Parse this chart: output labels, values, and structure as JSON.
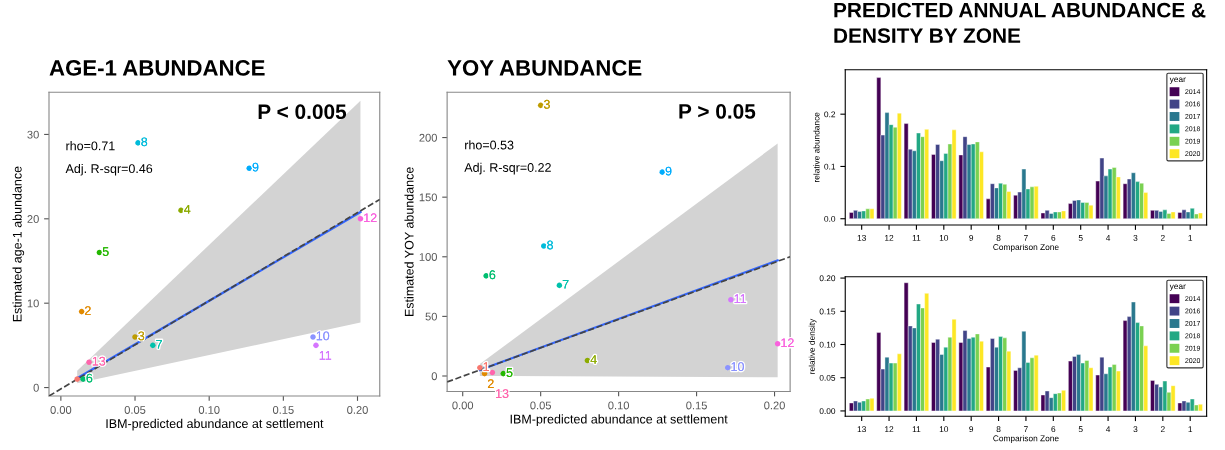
{
  "chart_data": [
    {
      "type": "scatter",
      "title": "AGE-1 ABUNDANCE",
      "xlabel": "IBM-predicted abundance at settlement",
      "ylabel": "Estimated age-1 abundance",
      "xlim": [
        -0.008,
        0.215
      ],
      "ylim": [
        -1,
        35
      ],
      "xticks": [
        {
          "value": 0,
          "label": "0.00"
        },
        {
          "value": 0.05,
          "label": "0.05"
        },
        {
          "value": 0.1,
          "label": "0.10"
        },
        {
          "value": 0.15,
          "label": "0.15"
        },
        {
          "value": 0.2,
          "label": "0.20"
        }
      ],
      "yticks": [
        0,
        10,
        20,
        30
      ],
      "grid": false,
      "x": [
        0.011,
        0.014,
        0.05,
        0.081,
        0.026,
        0.015,
        0.062,
        0.052,
        0.127,
        0.17,
        0.172,
        0.202,
        0.019
      ],
      "series": [
        {
          "type": "scatter",
          "marker": "circle",
          "colors": [
            "#f8766d",
            "#e18a00",
            "#be9c00",
            "#8cab00",
            "#24b700",
            "#00be70",
            "#00c1ab",
            "#00bbda",
            "#00acfc",
            "#8b93ff",
            "#d575fe",
            "#f962dd",
            "#ff65ac"
          ],
          "values": [
            1,
            9,
            6,
            21,
            16,
            1,
            5,
            29,
            26,
            6,
            5,
            20,
            3
          ]
        },
        {
          "type": "line",
          "x": [
            0.011,
            0.202
          ],
          "values": [
            1.1,
            20.8
          ],
          "lower": [
            0.5,
            7.7
          ],
          "upper": [
            2,
            34
          ],
          "color": "#3366ff"
        },
        {
          "type": "line",
          "x": [
            -0.008,
            0.215
          ],
          "values": [
            -1,
            22.3
          ],
          "color": "#444444",
          "line_style": "dashed"
        }
      ],
      "annotations": [
        "rho=0.71",
        "Adj. R-sqr=0.46",
        "P < 0.005",
        {
          "text": "2",
          "x": 0.014,
          "y": 9
        },
        {
          "text": "3",
          "x": 0.05,
          "y": 6
        },
        {
          "text": "4",
          "x": 0.081,
          "y": 21
        },
        {
          "text": "5",
          "x": 0.026,
          "y": 16
        },
        {
          "text": "6",
          "x": 0.015,
          "y": 1
        },
        {
          "text": "7",
          "x": 0.062,
          "y": 5
        },
        {
          "text": "8",
          "x": 0.052,
          "y": 29
        },
        {
          "text": "9",
          "x": 0.127,
          "y": 26
        },
        {
          "text": "10",
          "x": 0.17,
          "y": 6
        },
        {
          "text": "11",
          "x": 0.172,
          "y": 5
        },
        {
          "text": "12",
          "x": 0.202,
          "y": 20
        },
        {
          "text": "13",
          "x": 0.019,
          "y": 3
        }
      ]
    },
    {
      "type": "scatter",
      "title": "YOY ABUNDANCE",
      "xlabel": "IBM-predicted abundance at settlement",
      "ylabel": "Estimated YOY abundance",
      "xlim": [
        -0.01,
        0.21
      ],
      "ylim": [
        -13,
        238
      ],
      "xticks": [
        {
          "value": 0,
          "label": "0.00"
        },
        {
          "value": 0.05,
          "label": "0.05"
        },
        {
          "value": 0.1,
          "label": "0.10"
        },
        {
          "value": 0.15,
          "label": "0.15"
        },
        {
          "value": 0.2,
          "label": "0.20"
        }
      ],
      "yticks": [
        0,
        50,
        100,
        150,
        200
      ],
      "grid": false,
      "x": [
        0.011,
        0.014,
        0.05,
        0.08,
        0.026,
        0.015,
        0.062,
        0.052,
        0.128,
        0.17,
        0.172,
        0.202,
        0.019
      ],
      "series": [
        {
          "type": "scatter",
          "marker": "circle",
          "colors": [
            "#f8766d",
            "#e18a00",
            "#be9c00",
            "#8cab00",
            "#24b700",
            "#00be70",
            "#00c1ab",
            "#00bbda",
            "#00acfc",
            "#8b93ff",
            "#d575fe",
            "#f962dd",
            "#ff65ac"
          ],
          "values": [
            7,
            2,
            227,
            13,
            2,
            84,
            76,
            109,
            171,
            7,
            64,
            27,
            3
          ]
        },
        {
          "type": "line",
          "x": [
            0.011,
            0.202
          ],
          "values": [
            5,
            97
          ],
          "lower": [
            0,
            -1
          ],
          "upper": [
            10,
            195
          ],
          "color": "#3366ff"
        },
        {
          "type": "line",
          "x": [
            -0.01,
            0.21
          ],
          "values": [
            -5,
            100
          ],
          "color": "#444444",
          "line_style": "dashed"
        }
      ],
      "annotations": [
        "rho=0.53",
        "Adj. R-sqr=0.22",
        "P > 0.05",
        {
          "text": "1",
          "x": 0.011,
          "y": 7
        },
        {
          "text": "2",
          "x": 0.014,
          "y": 2
        },
        {
          "text": "3",
          "x": 0.05,
          "y": 227
        },
        {
          "text": "4",
          "x": 0.08,
          "y": 13
        },
        {
          "text": "5",
          "x": 0.026,
          "y": 2
        },
        {
          "text": "6",
          "x": 0.015,
          "y": 84
        },
        {
          "text": "7",
          "x": 0.062,
          "y": 76
        },
        {
          "text": "8",
          "x": 0.052,
          "y": 109
        },
        {
          "text": "9",
          "x": 0.128,
          "y": 171
        },
        {
          "text": "10",
          "x": 0.17,
          "y": 7
        },
        {
          "text": "11",
          "x": 0.172,
          "y": 64
        },
        {
          "text": "12",
          "x": 0.202,
          "y": 27
        },
        {
          "text": "13",
          "x": 0.019,
          "y": 3
        }
      ]
    },
    {
      "type": "bar",
      "title": "PREDICTED ANNUAL ABUNDANCE & DENSITY BY ZONE",
      "xlabel": "Comparison Zone",
      "ylabel": "relative abundance",
      "legend_title": "year",
      "legend": "top right",
      "grid": false,
      "categories": [
        "13",
        "12",
        "11",
        "10",
        "9",
        "8",
        "7",
        "6",
        "5",
        "4",
        "3",
        "2",
        "1"
      ],
      "ylim": [
        -0.012,
        0.285
      ],
      "yticks": [
        {
          "value": 0,
          "label": "0.0"
        },
        {
          "value": 0.1,
          "label": "0.1"
        },
        {
          "value": 0.2,
          "label": "0.2"
        }
      ],
      "series": [
        {
          "name": "2014",
          "color": "#440154",
          "values": [
            0.012,
            0.27,
            0.182,
            0.123,
            0.122,
            0.038,
            0.045,
            0.011,
            0.029,
            0.072,
            0.067,
            0.016,
            0.012
          ]
        },
        {
          "name": "2016",
          "color": "#414487",
          "values": [
            0.016,
            0.16,
            0.133,
            0.142,
            0.157,
            0.067,
            0.051,
            0.016,
            0.035,
            0.116,
            0.076,
            0.016,
            0.017
          ]
        },
        {
          "name": "2017",
          "color": "#2a788e",
          "values": [
            0.014,
            0.203,
            0.13,
            0.111,
            0.142,
            0.059,
            0.095,
            0.01,
            0.036,
            0.082,
            0.088,
            0.014,
            0.013
          ]
        },
        {
          "name": "2018",
          "color": "#22a884",
          "values": [
            0.015,
            0.18,
            0.164,
            0.125,
            0.143,
            0.068,
            0.057,
            0.013,
            0.031,
            0.095,
            0.071,
            0.017,
            0.02
          ]
        },
        {
          "name": "2019",
          "color": "#7ad151",
          "values": [
            0.019,
            0.175,
            0.157,
            0.143,
            0.147,
            0.066,
            0.061,
            0.013,
            0.031,
            0.098,
            0.068,
            0.01,
            0.009
          ]
        },
        {
          "name": "2020",
          "color": "#fde725",
          "values": [
            0.019,
            0.202,
            0.171,
            0.17,
            0.128,
            0.052,
            0.062,
            0.015,
            0.026,
            0.08,
            0.05,
            0.013,
            0.011
          ]
        }
      ]
    },
    {
      "type": "bar",
      "xlabel": "Comparison Zone",
      "ylabel": "relative density",
      "legend_title": "year",
      "legend": "top right",
      "grid": false,
      "categories": [
        "13",
        "12",
        "11",
        "10",
        "9",
        "8",
        "7",
        "6",
        "5",
        "4",
        "3",
        "2",
        "1"
      ],
      "ylim": [
        -0.008,
        0.202
      ],
      "yticks": [
        {
          "value": 0,
          "label": "0.00"
        },
        {
          "value": 0.05,
          "label": "0.05"
        },
        {
          "value": 0.1,
          "label": "0.10"
        },
        {
          "value": 0.15,
          "label": "0.15"
        },
        {
          "value": 0.2,
          "label": "0.20"
        }
      ],
      "series": [
        {
          "name": "2014",
          "color": "#440154",
          "values": [
            0.012,
            0.118,
            0.193,
            0.103,
            0.103,
            0.066,
            0.061,
            0.024,
            0.075,
            0.054,
            0.136,
            0.046,
            0.012
          ]
        },
        {
          "name": "2016",
          "color": "#414487",
          "values": [
            0.015,
            0.063,
            0.128,
            0.108,
            0.121,
            0.109,
            0.065,
            0.03,
            0.082,
            0.081,
            0.142,
            0.04,
            0.015
          ]
        },
        {
          "name": "2017",
          "color": "#2a788e",
          "values": [
            0.013,
            0.081,
            0.125,
            0.085,
            0.109,
            0.096,
            0.12,
            0.02,
            0.085,
            0.056,
            0.164,
            0.036,
            0.013
          ]
        },
        {
          "name": "2018",
          "color": "#22a884",
          "values": [
            0.015,
            0.072,
            0.161,
            0.096,
            0.111,
            0.112,
            0.073,
            0.026,
            0.072,
            0.066,
            0.133,
            0.045,
            0.018
          ]
        },
        {
          "name": "2019",
          "color": "#7ad151",
          "values": [
            0.018,
            0.072,
            0.155,
            0.111,
            0.116,
            0.11,
            0.08,
            0.027,
            0.076,
            0.07,
            0.128,
            0.028,
            0.009
          ]
        },
        {
          "name": "2020",
          "color": "#fde725",
          "values": [
            0.019,
            0.086,
            0.177,
            0.138,
            0.105,
            0.09,
            0.084,
            0.031,
            0.065,
            0.06,
            0.098,
            0.038,
            0.01
          ]
        }
      ]
    }
  ]
}
